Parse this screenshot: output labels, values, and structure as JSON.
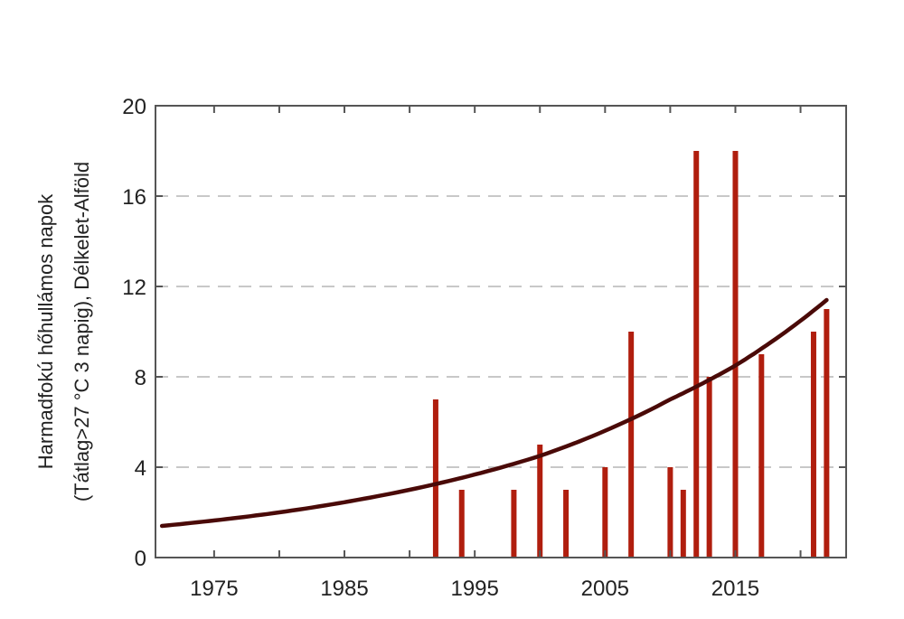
{
  "chart_data": {
    "type": "bar",
    "title": "",
    "xlabel": "",
    "ylabel_line1": "Harmadfokú hőhullámos napok",
    "ylabel_line2": "(Tátlag>27 °C 3 napig), Délkelet-Alföld",
    "xlim": [
      1970.5,
      2023.5
    ],
    "ylim": [
      0,
      20
    ],
    "x_ticks": [
      1975,
      1985,
      1995,
      2005,
      2015
    ],
    "x_minor_ticks": [
      1980,
      1990,
      2000,
      2010,
      2020
    ],
    "y_ticks": [
      0,
      4,
      8,
      12,
      16,
      20
    ],
    "grid": "horizontal-dashed",
    "bars": [
      {
        "x": 1992,
        "y": 7
      },
      {
        "x": 1994,
        "y": 3
      },
      {
        "x": 1998,
        "y": 3
      },
      {
        "x": 2000,
        "y": 5
      },
      {
        "x": 2002,
        "y": 3
      },
      {
        "x": 2005,
        "y": 4
      },
      {
        "x": 2007,
        "y": 10
      },
      {
        "x": 2010,
        "y": 4
      },
      {
        "x": 2011,
        "y": 3
      },
      {
        "x": 2012,
        "y": 18
      },
      {
        "x": 2013,
        "y": 8
      },
      {
        "x": 2015,
        "y": 18
      },
      {
        "x": 2017,
        "y": 9
      },
      {
        "x": 2021,
        "y": 10
      },
      {
        "x": 2022,
        "y": 11
      }
    ],
    "trend": {
      "type": "exponential",
      "points": [
        [
          1971,
          1.4
        ],
        [
          1980,
          2.0
        ],
        [
          1990,
          3.0
        ],
        [
          2000,
          4.5
        ],
        [
          2010,
          7.0
        ],
        [
          2015,
          8.5
        ],
        [
          2022,
          11.4
        ]
      ]
    },
    "colors": {
      "bars": "#b01e0e",
      "trend": "#4a0a08",
      "grid": "#c8c8c8",
      "axis": "#555555"
    }
  }
}
